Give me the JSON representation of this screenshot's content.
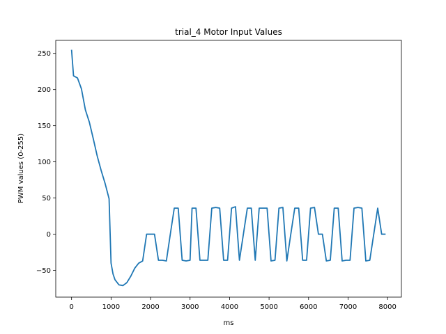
{
  "chart_data": {
    "type": "line",
    "title": "trial_4 Motor Input Values",
    "xlabel": "ms",
    "ylabel": "PWM values (0-255)",
    "xlim": [
      -400,
      8350
    ],
    "ylim": [
      -87,
      268
    ],
    "xticks": [
      0,
      1000,
      2000,
      3000,
      4000,
      5000,
      6000,
      7000,
      8000
    ],
    "yticks": [
      -50,
      0,
      50,
      100,
      150,
      200,
      250
    ],
    "grid": false,
    "line_color": "#1f77b4",
    "series": [
      {
        "x": [
          0,
          50,
          150,
          250,
          350,
          450,
          550,
          650,
          750,
          850,
          950,
          1000,
          1050,
          1100,
          1200,
          1300,
          1400,
          1500,
          1600,
          1700,
          1800,
          1900,
          2000,
          2100,
          2200,
          2300,
          2400,
          2500,
          2600,
          2700,
          2800,
          2900,
          3000,
          3050,
          3150,
          3250,
          3350,
          3450,
          3550,
          3650,
          3750,
          3850,
          3950,
          4050,
          4150,
          4250,
          4350,
          4450,
          4550,
          4650,
          4750,
          4850,
          4950,
          5050,
          5150,
          5250,
          5350,
          5450,
          5550,
          5650,
          5750,
          5850,
          5950,
          6050,
          6150,
          6250,
          6350,
          6450,
          6550,
          6650,
          6750,
          6850,
          6950,
          7050,
          7150,
          7250,
          7350,
          7450,
          7550,
          7650,
          7750,
          7850,
          7950
        ],
        "y": [
          255,
          219,
          216,
          201,
          172,
          155,
          132,
          108,
          88,
          70,
          49,
          -40,
          -55,
          -63,
          -70,
          -71,
          -67,
          -58,
          -47,
          -40,
          -37,
          0,
          0,
          0,
          -36,
          -36,
          -37,
          0,
          36,
          36,
          -36,
          -37,
          -36,
          36,
          36,
          -36,
          -36,
          -36,
          36,
          37,
          36,
          -36,
          -36,
          36,
          38,
          -36,
          0,
          36,
          36,
          -36,
          36,
          36,
          36,
          -37,
          -36,
          36,
          37,
          -37,
          0,
          36,
          36,
          -36,
          -36,
          36,
          37,
          0,
          0,
          -37,
          -36,
          36,
          36,
          -37,
          -36,
          -36,
          36,
          37,
          36,
          -37,
          -36,
          0,
          36,
          0,
          0
        ]
      }
    ]
  }
}
